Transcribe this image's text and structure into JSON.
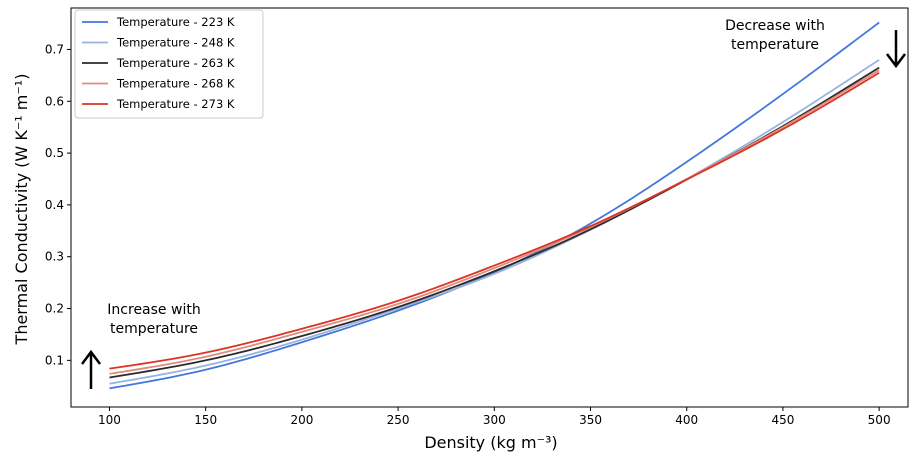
{
  "chart_data": {
    "type": "line",
    "xlabel": "Density (kg m⁻³)",
    "ylabel": "Thermal Conductivity (W K⁻¹ m⁻¹)",
    "xlim": [
      80,
      515
    ],
    "ylim": [
      0.01,
      0.78
    ],
    "xticks": [
      100,
      150,
      200,
      250,
      300,
      350,
      400,
      450,
      500
    ],
    "yticks": [
      0.1,
      0.2,
      0.3,
      0.4,
      0.5,
      0.6,
      0.7
    ],
    "grid": false,
    "legend_position": "top-left",
    "x": [
      100,
      150,
      200,
      250,
      300,
      350,
      400,
      450,
      500
    ],
    "series": [
      {
        "name": "Temperature - 223 K",
        "color": "#4477dd",
        "values": [
          0.046,
          0.082,
          0.135,
          0.196,
          0.27,
          0.364,
          0.483,
          0.614,
          0.752
        ]
      },
      {
        "name": "Temperature - 248 K",
        "color": "#9ab3dc",
        "values": [
          0.055,
          0.09,
          0.14,
          0.2,
          0.267,
          0.352,
          0.45,
          0.56,
          0.68
        ]
      },
      {
        "name": "Temperature - 263 K",
        "color": "#2b2b2b",
        "values": [
          0.067,
          0.1,
          0.147,
          0.203,
          0.272,
          0.353,
          0.449,
          0.552,
          0.665
        ]
      },
      {
        "name": "Temperature - 268 K",
        "color": "#e08a80",
        "values": [
          0.074,
          0.107,
          0.155,
          0.209,
          0.278,
          0.357,
          0.45,
          0.55,
          0.66
        ]
      },
      {
        "name": "Temperature - 273 K",
        "color": "#dd3322",
        "values": [
          0.084,
          0.115,
          0.161,
          0.215,
          0.283,
          0.359,
          0.449,
          0.546,
          0.655
        ]
      }
    ],
    "annotations": {
      "increase_line1": "Increase with",
      "increase_line2": "temperature",
      "decrease_line1": "Decrease with",
      "decrease_line2": "temperature"
    }
  }
}
